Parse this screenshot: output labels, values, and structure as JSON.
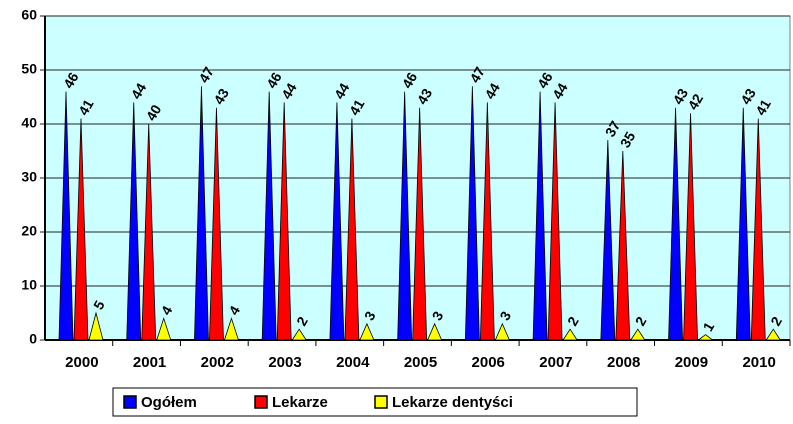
{
  "chart_data": {
    "type": "bar",
    "categories": [
      "2000",
      "2001",
      "2002",
      "2003",
      "2004",
      "2005",
      "2006",
      "2007",
      "2008",
      "2009",
      "2010"
    ],
    "series": [
      {
        "name": "Ogółem",
        "color": "#0000ff",
        "values": [
          46,
          44,
          47,
          46,
          44,
          46,
          47,
          46,
          37,
          43,
          43
        ]
      },
      {
        "name": "Lekarze",
        "color": "#ff0000",
        "values": [
          41,
          40,
          43,
          44,
          41,
          43,
          44,
          44,
          35,
          42,
          41
        ]
      },
      {
        "name": "Lekarze dentyści",
        "color": "#ffff00",
        "values": [
          5,
          4,
          4,
          2,
          3,
          3,
          3,
          2,
          2,
          1,
          2
        ]
      }
    ],
    "ylim": [
      0,
      60
    ],
    "yticks": [
      0,
      10,
      20,
      30,
      40,
      50,
      60
    ],
    "grid": true,
    "legend": "bottom"
  }
}
